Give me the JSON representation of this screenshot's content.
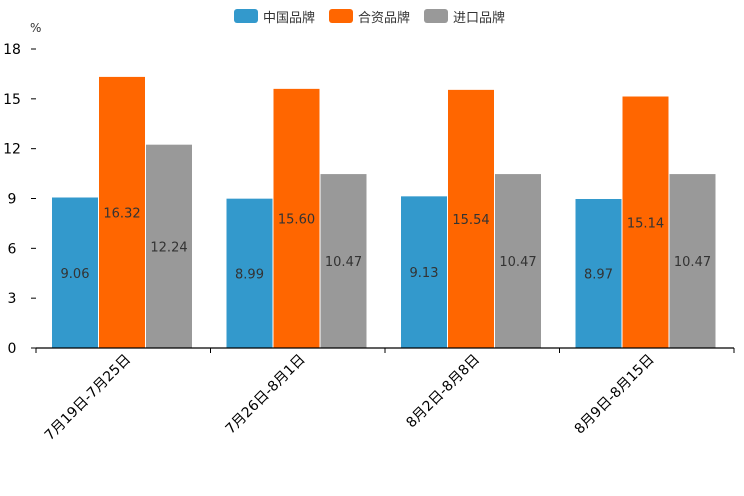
{
  "chart_data": {
    "type": "bar",
    "title": "",
    "unit_label": "%",
    "ylim": [
      0,
      18
    ],
    "yticks": [
      "0",
      "3",
      "6",
      "9",
      "12",
      "15",
      "18"
    ],
    "categories": [
      "7月19日-7月25日",
      "7月26日-8月1日",
      "8月2日-8月8日",
      "8月9日-8月15日"
    ],
    "series": [
      {
        "name": "中国品牌",
        "color": "#3399cc",
        "values": [
          9.06,
          8.99,
          9.13,
          8.97
        ],
        "labels": [
          "9.06",
          "8.99",
          "9.13",
          "8.97"
        ]
      },
      {
        "name": "合资品牌",
        "color": "#ff6600",
        "values": [
          16.32,
          15.6,
          15.54,
          15.14
        ],
        "labels": [
          "16.32",
          "15.60",
          "15.54",
          "15.14"
        ]
      },
      {
        "name": "进口品牌",
        "color": "#999999",
        "values": [
          12.24,
          10.47,
          10.47,
          10.47
        ],
        "labels": [
          "12.24",
          "10.47",
          "10.47",
          "10.47"
        ]
      }
    ],
    "legend_position": "top-center",
    "grid": false
  }
}
